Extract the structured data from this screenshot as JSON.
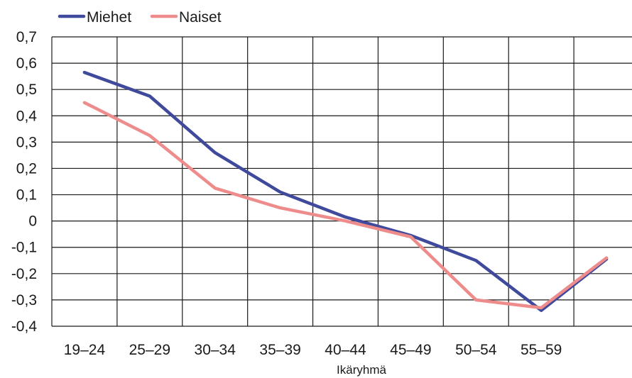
{
  "chart_data": {
    "type": "line",
    "title": "",
    "xlabel": "Ikäryhmä",
    "ylabel": "",
    "categories": [
      "19–24",
      "25–29",
      "30–34",
      "35–39",
      "40–44",
      "45–49",
      "50–54",
      "55–59",
      ""
    ],
    "y_ticks": [
      "0,7",
      "0,6",
      "0,5",
      "0,4",
      "0,3",
      "0,2",
      "0,1",
      "0",
      "-0,1",
      "-0,2",
      "-0,3",
      "-0,4"
    ],
    "ylim": [
      -0.4,
      0.7
    ],
    "grid": true,
    "legend_position": "top-left",
    "series": [
      {
        "name": "Miehet",
        "color": "#3f4a9c",
        "values": [
          0.565,
          0.475,
          0.26,
          0.11,
          0.015,
          -0.055,
          -0.15,
          -0.34,
          -0.145
        ]
      },
      {
        "name": "Naiset",
        "color": "#ee8c8c",
        "values": [
          0.45,
          0.325,
          0.125,
          0.05,
          0.0,
          -0.06,
          -0.3,
          -0.33,
          -0.14
        ]
      }
    ]
  }
}
